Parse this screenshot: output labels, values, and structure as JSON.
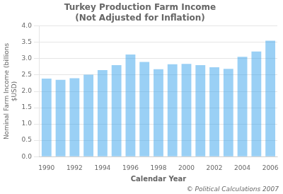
{
  "chart_data": {
    "type": "bar",
    "title": "Turkey Production Farm Income\n(Not Adjusted for Inflation)",
    "x_label": "Calendar Year",
    "y_label": "Nominal Farm Income (billions\n$USD)",
    "categories": [
      "1990",
      null,
      "1992",
      null,
      "1994",
      null,
      "1996",
      null,
      "1998",
      null,
      "2000",
      null,
      "2002",
      null,
      "2004",
      null,
      "2006"
    ],
    "values": [
      2.39,
      2.35,
      2.4,
      2.51,
      2.65,
      2.8,
      3.13,
      2.9,
      2.68,
      2.83,
      2.84,
      2.8,
      2.74,
      2.69,
      3.06,
      3.22,
      3.55
    ],
    "ylim": [
      0.0,
      4.0
    ],
    "yticks": [
      {
        "value": 0,
        "label": "0.0"
      },
      0.5,
      {
        "value": 1,
        "label": "1.0"
      },
      1.5,
      {
        "value": 2,
        "label": "2.0"
      },
      2.5,
      {
        "value": 3,
        "label": "3.0"
      },
      3.5,
      {
        "value": 4,
        "label": "4.0"
      }
    ],
    "grid": true,
    "annotations": [
      "© Political Calculations 2007"
    ]
  }
}
